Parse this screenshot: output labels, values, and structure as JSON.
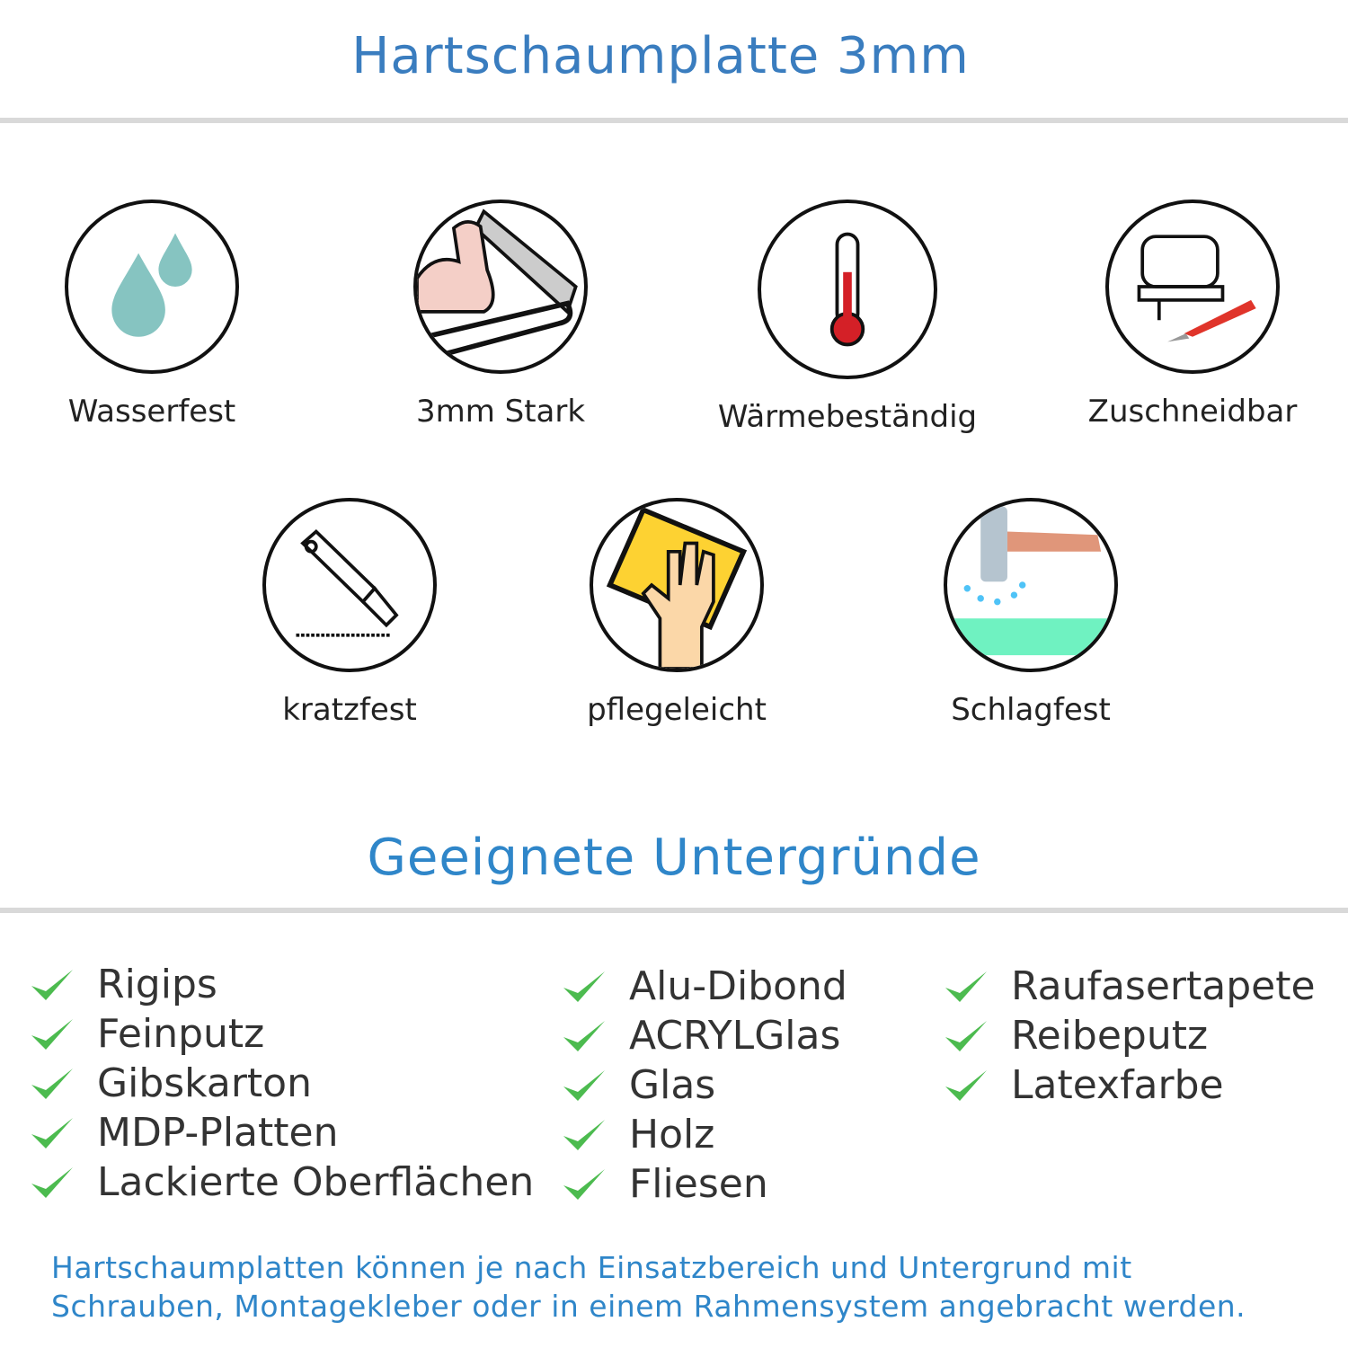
{
  "header": {
    "title": "Hartschaumplatte 3mm"
  },
  "features": [
    {
      "label": "Wasserfest",
      "icon": "water-drops-icon"
    },
    {
      "label": "3mm Stark",
      "icon": "strong-arm-icon"
    },
    {
      "label": "Wärmebeständig",
      "icon": "thermometer-icon"
    },
    {
      "label": "Zuschneidbar",
      "icon": "jigsaw-cutter-icon"
    },
    {
      "label": "kratzfest",
      "icon": "cutter-knife-icon"
    },
    {
      "label": "pflegeleicht",
      "icon": "cleaning-hand-icon"
    },
    {
      "label": "Schlagfest",
      "icon": "hammer-icon"
    }
  ],
  "surfaces": {
    "title": "Geeignete Untergründe",
    "columns": [
      [
        "Rigips",
        "Feinputz",
        "Gibskarton",
        "MDP-Platten",
        "Lackierte Oberflächen"
      ],
      [
        "Alu-Dibond",
        "ACRYLGlas",
        "Glas",
        "Holz",
        "Fliesen"
      ],
      [
        "Raufasertapete",
        "Reibeputz",
        "Latexfarbe"
      ]
    ]
  },
  "footer": {
    "line1": "Hartschaumplatten können je nach Einsatzbereich und Untergrund mit",
    "line2": "Schrauben, Montagekleber oder in einem Rahmensystem angebracht werden."
  },
  "colors": {
    "title": "#3a7dbf",
    "accent": "#2f86c9",
    "check": "#4cbb4f",
    "rule": "#d9d9d9"
  }
}
